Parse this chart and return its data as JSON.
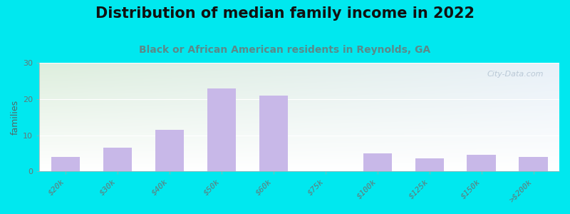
{
  "title": "Distribution of median family income in 2022",
  "subtitle": "Black or African American residents in Reynolds, GA",
  "ylabel": "families",
  "categories": [
    "$20k",
    "$30k",
    "$40k",
    "$50k",
    "$60k",
    "$75k",
    "$100k",
    "$125k",
    "$150k",
    ">$200k"
  ],
  "values": [
    4,
    6.5,
    11.5,
    23,
    21,
    0,
    5,
    3.5,
    4.5,
    4
  ],
  "bar_color": "#c8b8e8",
  "bg_outer": "#00e8ef",
  "yticks": [
    0,
    10,
    20,
    30
  ],
  "ylim": [
    0,
    30
  ],
  "title_fontsize": 15,
  "subtitle_fontsize": 10,
  "ylabel_fontsize": 9,
  "tick_fontsize": 8,
  "bar_width": 0.55,
  "watermark": "City-Data.com",
  "subtitle_color": "#5a8a8a",
  "title_color": "#111111",
  "tick_label_color": "#667777",
  "bg_grad_topleft": "#ddeedd",
  "bg_grad_topright": "#e8f0f8",
  "bg_grad_bottom": "#f0f8ff"
}
